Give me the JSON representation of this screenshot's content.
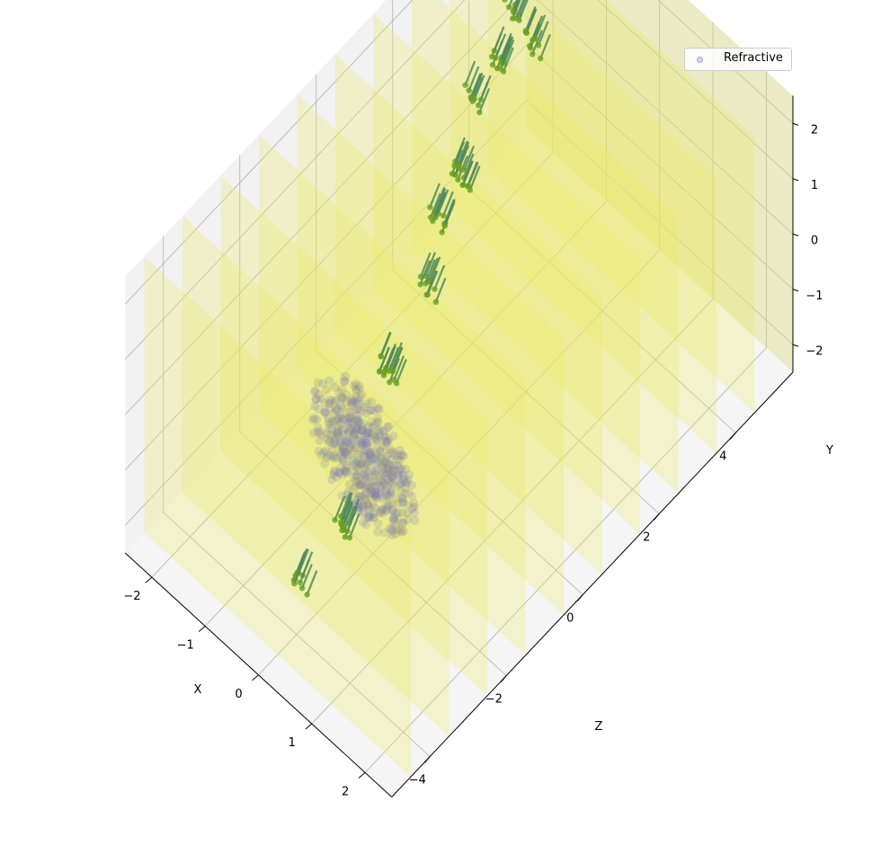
{
  "chart_data": {
    "type": "scatter",
    "projection": "3d",
    "xlabel": "X",
    "ylabel": "Y",
    "zlabel": "Z",
    "x_ticks": [
      "−2",
      "−1",
      "0",
      "1",
      "2"
    ],
    "y_ticks": [
      "−2",
      "−1",
      "0",
      "1",
      "2"
    ],
    "z_ticks": [
      "−4",
      "−2",
      "0",
      "2",
      "4"
    ],
    "xlim": [
      -2.5,
      2.5
    ],
    "ylim": [
      -2.5,
      2.5
    ],
    "zlim": [
      -5,
      5.5
    ],
    "grid": true,
    "legend": {
      "placement": "top-right",
      "entries": [
        "Refractive"
      ]
    },
    "planes": {
      "description_color": "yellow",
      "color": "#e8e860",
      "z_positions": [
        -4.5,
        -3.5,
        -2.5,
        -1.5,
        -0.5,
        0.5,
        1.5,
        2.5,
        3.5,
        4.5,
        5.5
      ]
    },
    "series": [
      {
        "name": "Refractive",
        "kind": "ellipsoid-cloud",
        "color": "#8080e0",
        "center": [
          0.4,
          0.2,
          -2.8
        ],
        "radii": [
          1.0,
          1.2,
          0.2
        ]
      },
      {
        "kind": "rays",
        "color": "#4f8a5a",
        "segments": [
          [
            0.1,
            -1.5,
            -4.0
          ],
          [
            0.4,
            -0.6,
            -3.4
          ],
          [
            0.0,
            0.5,
            -1.6
          ],
          [
            -0.2,
            0.9,
            -0.3
          ],
          [
            -0.6,
            1.2,
            0.5
          ],
          [
            -0.5,
            1.7,
            1.0
          ],
          [
            -1.0,
            1.9,
            2.0
          ],
          [
            -0.9,
            2.2,
            2.6
          ],
          [
            -1.2,
            2.4,
            3.3
          ],
          [
            -0.6,
            2.5,
            3.0
          ]
        ]
      }
    ]
  }
}
